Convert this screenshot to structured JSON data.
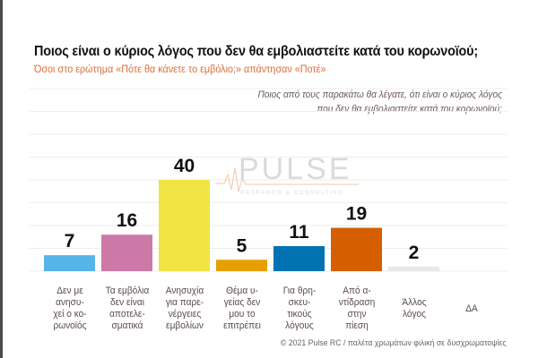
{
  "header": {
    "title": "Ποιος είναι ο κύριος λόγος που δεν θα εμβολιαστείτε κατά του κορωνοϊού;",
    "subtitle": "Όσοι στο ερώτημα «Πότε θα κάνετε το εμβόλιο;» απάντησαν «Ποτέ»",
    "question_line1": "Ποιος από τους παρακάτω θα λέγατε, ότι είναι ο κύριος λόγος",
    "question_line2": "που δεν θα εμβολιαστείτε κατά του κορωνοϊού;"
  },
  "watermark": {
    "brand": "PULSE",
    "tagline": "RESEARCH & CONSULTING"
  },
  "footer": {
    "text": "© 2021 Pulse RC  /  παλέτα χρωμάτων φιλική σε δυσχρωματοψίες"
  },
  "chart_data": {
    "type": "bar",
    "title": "Ποιος είναι ο κύριος λόγος που δεν θα εμβολιαστείτε κατά του κορωνοϊού;",
    "xlabel": "",
    "ylabel": "",
    "ylim": [
      0,
      80
    ],
    "grid": true,
    "gridline_step": 10,
    "categories": [
      [
        "Δεν με",
        "ανησυ-",
        "χεί ο κο-",
        "ρωνοϊός"
      ],
      [
        "Τα εμβόλια",
        "δεν είναι",
        "αποτελε-",
        "σματικά"
      ],
      [
        "Ανησυχία",
        "για παρε-",
        "νέργειες",
        "εμβολίων"
      ],
      [
        "Θέμα υ-",
        "γείας δεν",
        "μου το",
        "επιτρέπει"
      ],
      [
        "Για θρη-",
        "σκευ-",
        "τικούς",
        "λόγους"
      ],
      [
        "Από α-",
        "ντίδραση",
        "στην",
        "πίεση"
      ],
      [
        "Άλλος",
        "λόγος"
      ],
      [
        "ΔΑ"
      ]
    ],
    "values": [
      7,
      16,
      40,
      5,
      11,
      19,
      2,
      0
    ],
    "value_labels": [
      "7",
      "16",
      "40",
      "5",
      "11",
      "19",
      "2",
      ""
    ],
    "colors": [
      "#56b4e9",
      "#cc79a7",
      "#f0e442",
      "#e69f00",
      "#0072b2",
      "#d55e00",
      "#e8e8e8",
      "#ffffff"
    ],
    "gridline_color": "#eeeeee"
  }
}
